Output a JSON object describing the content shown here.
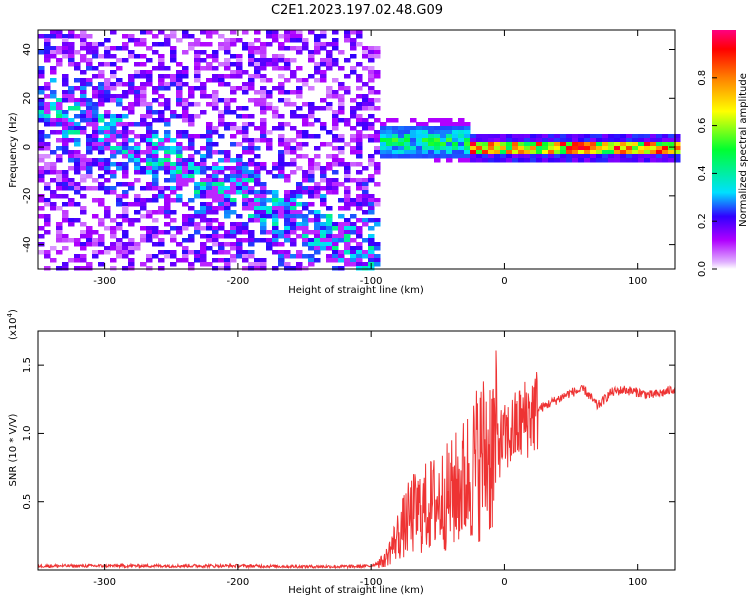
{
  "title": "C2E1.2023.197.02.48.G09",
  "chart_data": [
    {
      "type": "heatmap",
      "panel": "spectrogram",
      "xlabel": "Height of straight line (km)",
      "ylabel": "Frequency (Hz)",
      "xlim": [
        -350,
        128
      ],
      "ylim": [
        -50,
        48
      ],
      "x_ticks": [
        -300,
        -200,
        -100,
        0,
        100
      ],
      "y_ticks": [
        -40,
        -20,
        0,
        20,
        40
      ],
      "colorbar": {
        "label": "Normalized spectral amplitude",
        "range": [
          0.0,
          1.0
        ],
        "ticks": [
          0.0,
          0.2,
          0.4,
          0.6,
          0.8
        ],
        "colormap": [
          "#ffffff",
          "#b000ff",
          "#3000ff",
          "#00e0ff",
          "#00ff60",
          "#ffff00",
          "#ff8000",
          "#ff0000",
          "#ff0080"
        ]
      },
      "features": [
        {
          "x_range": [
            -350,
            -95
          ],
          "description": "diffuse noise, amplitude 0.1-0.4",
          "trend": "descending from +20 Hz to -45 Hz"
        },
        {
          "x_range": [
            -95,
            -30
          ],
          "center_hz": 3,
          "peak_amplitude": 0.6
        },
        {
          "x_range": [
            -30,
            128
          ],
          "center_hz": 0.5,
          "peak_amplitude": 0.95
        }
      ]
    },
    {
      "type": "line",
      "panel": "snr",
      "xlabel": "Height of straight line (km)",
      "ylabel": "SNR (10 * V/V)",
      "y_multiplier": "(x10^4)",
      "y_multiplier_base": "(x10",
      "y_multiplier_exp": "4",
      "y_multiplier_close": ")",
      "xlim": [
        -350,
        128
      ],
      "ylim": [
        0,
        17500
      ],
      "x_ticks": [
        -300,
        -200,
        -100,
        0,
        100
      ],
      "y_ticks": [
        0.5,
        1.0,
        1.5
      ],
      "color": "#ee3333",
      "series": [
        {
          "x": [
            -350,
            -300,
            -250,
            -200,
            -150,
            -110,
            -100,
            -90,
            -80,
            -70,
            -60,
            -50,
            -40,
            -30,
            -20,
            -10,
            0,
            10,
            20,
            30,
            40,
            50,
            60,
            70,
            80,
            90,
            100,
            110,
            120,
            128
          ],
          "values": [
            300,
            300,
            300,
            300,
            250,
            250,
            300,
            700,
            2500,
            4000,
            4500,
            5000,
            5500,
            6500,
            8000,
            9000,
            9500,
            10500,
            11500,
            12000,
            12500,
            13000,
            13200,
            12000,
            13000,
            13200,
            13000,
            12800,
            13000,
            13300
          ]
        }
      ]
    }
  ]
}
